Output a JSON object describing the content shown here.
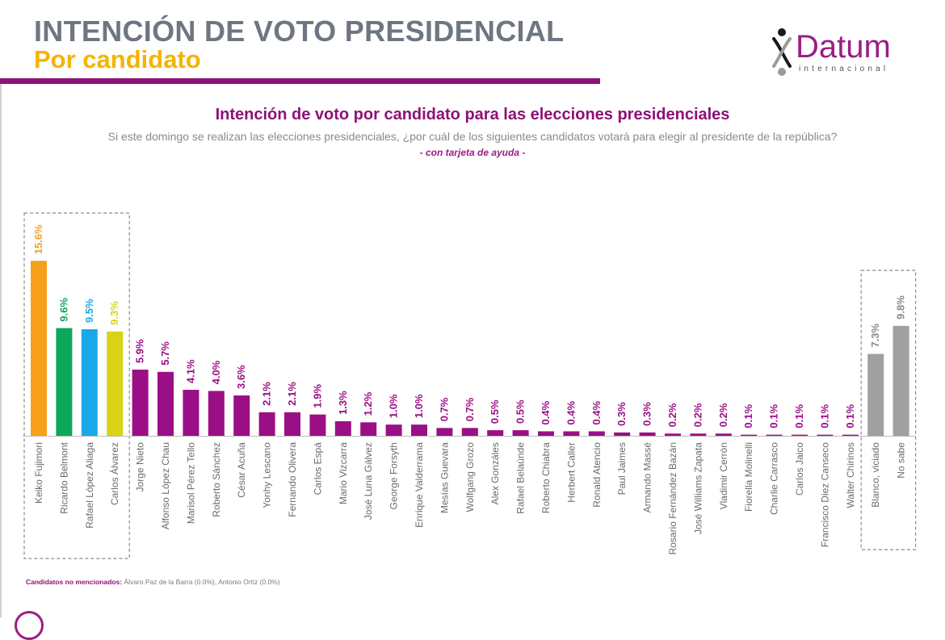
{
  "header": {
    "title": "INTENCIÓN DE VOTO PRESIDENCIAL",
    "subtitle": "Por candidato"
  },
  "logo": {
    "name": "Datum",
    "tagline": "internacional"
  },
  "colors": {
    "accent": "#8e1178",
    "header_gray": "#6f7682",
    "subtitle_yellow": "#f4b400"
  },
  "chart_data": {
    "type": "bar",
    "title": "Intención de voto por candidato para las elecciones presidenciales",
    "question": "Si este domingo se realizan las elecciones presidenciales, ¿por cuál de los siguientes candidatos votará para elegir al presidente de la república?",
    "note": "- con tarjeta de ayuda -",
    "unit": "%",
    "ylim": [
      0,
      16
    ],
    "categories": [
      "Keiko Fujimori",
      "Ricardo Belmont",
      "Rafael López Aliaga",
      "Carlos Álvarez",
      "Jorge Nieto",
      "Alfonso López Chau",
      "Marisol Pérez Tello",
      "Roberto Sánchez",
      "César Acuña",
      "Yonhy Lescano",
      "Fernando Olivera",
      "Carlos Espá",
      "Mario Vizcarra",
      "José Luna Gálvez",
      "George Forsyth",
      "Enrique Valderrama",
      "Mesías Guevara",
      "Wolfgang Grozo",
      "Alex Gonzáles",
      "Rafael Belaúnde",
      "Roberto Chiabra",
      "Herbert Caller",
      "Ronald Atencio",
      "Paul Jaimes",
      "Armando Massé",
      "Rosario Fernández Bazán",
      "José Williams Zapata",
      "Vladimir Cerrón",
      "Fiorella Molinelli",
      "Charlie Carrasco",
      "Carlos Jaico",
      "Francisco Diez Canseco",
      "Walter Chirinos",
      "Blanco, viciado",
      "No sabe"
    ],
    "values": [
      15.6,
      9.6,
      9.5,
      9.3,
      5.9,
      5.7,
      4.1,
      4.0,
      3.6,
      2.1,
      2.1,
      1.9,
      1.3,
      1.2,
      1.0,
      1.0,
      0.7,
      0.7,
      0.5,
      0.5,
      0.4,
      0.4,
      0.4,
      0.3,
      0.3,
      0.2,
      0.2,
      0.2,
      0.1,
      0.1,
      0.1,
      0.1,
      0.1,
      7.3,
      9.8
    ],
    "labels": [
      "15.6%",
      "9.6%",
      "9.5%",
      "9.3%",
      "5.9%",
      "5.7%",
      "4.1%",
      "4.0%",
      "3.6%",
      "2.1%",
      "2.1%",
      "1.9%",
      "1.3%",
      "1.2%",
      "1.0%",
      "1.0%",
      "0.7%",
      "0.7%",
      "0.5%",
      "0.5%",
      "0.4%",
      "0.4%",
      "0.4%",
      "0.3%",
      "0.3%",
      "0.2%",
      "0.2%",
      "0.2%",
      "0.1%",
      "0.1%",
      "0.1%",
      "0.1%",
      "0.1%",
      "7.3%",
      "9.8%"
    ],
    "colors": [
      "#f7a01b",
      "#0ea65a",
      "#19a8e8",
      "#d8d315",
      "#9b0f86",
      "#9b0f86",
      "#9b0f86",
      "#9b0f86",
      "#9b0f86",
      "#9b0f86",
      "#9b0f86",
      "#9b0f86",
      "#9b0f86",
      "#9b0f86",
      "#9b0f86",
      "#9b0f86",
      "#9b0f86",
      "#9b0f86",
      "#9b0f86",
      "#9b0f86",
      "#9b0f86",
      "#9b0f86",
      "#9b0f86",
      "#9b0f86",
      "#9b0f86",
      "#9b0f86",
      "#9b0f86",
      "#9b0f86",
      "#9b0f86",
      "#9b0f86",
      "#9b0f86",
      "#9b0f86",
      "#9b0f86",
      "#a0a0a0",
      "#a0a0a0"
    ],
    "label_colors": [
      "#f7a01b",
      "#0ea65a",
      "#19a8e8",
      "#d8d315",
      "#9b0f86",
      "#9b0f86",
      "#9b0f86",
      "#9b0f86",
      "#9b0f86",
      "#9b0f86",
      "#9b0f86",
      "#9b0f86",
      "#9b0f86",
      "#9b0f86",
      "#9b0f86",
      "#9b0f86",
      "#9b0f86",
      "#9b0f86",
      "#9b0f86",
      "#9b0f86",
      "#9b0f86",
      "#9b0f86",
      "#9b0f86",
      "#9b0f86",
      "#9b0f86",
      "#9b0f86",
      "#9b0f86",
      "#9b0f86",
      "#9b0f86",
      "#9b0f86",
      "#9b0f86",
      "#9b0f86",
      "#9b0f86",
      "#8a8a8a",
      "#8a8a8a"
    ],
    "highlight_groups": [
      {
        "from": 0,
        "to": 3
      },
      {
        "from": 33,
        "to": 34
      }
    ]
  },
  "footnote": {
    "label": "Candidatos no mencionados:",
    "text": "Álvaro Paz de la Barra (0.0%), Antonio Ortiz (0.0%)"
  }
}
